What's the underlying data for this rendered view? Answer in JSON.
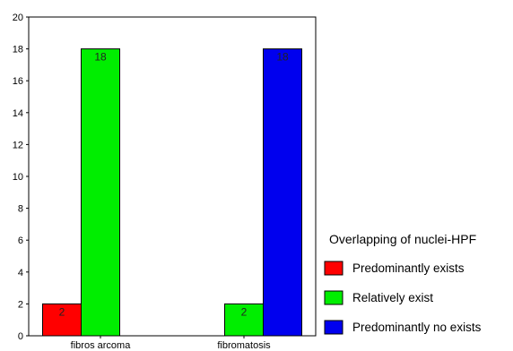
{
  "chart_data": {
    "type": "bar",
    "categories": [
      "fibrosarcoma",
      "fibromatosis"
    ],
    "category_labels": [
      "fibros arcoma",
      "fibromatosis"
    ],
    "series": [
      {
        "name": "Predominantly exists",
        "values": [
          2,
          0
        ],
        "color": "#ff0000"
      },
      {
        "name": "Relatively exist",
        "values": [
          18,
          2
        ],
        "color": "#00ee00"
      },
      {
        "name": "Predominantly no exists",
        "values": [
          0,
          18
        ],
        "color": "#0000ee"
      }
    ],
    "data_labels": [
      {
        "category": 0,
        "series": 0,
        "text": "2"
      },
      {
        "category": 0,
        "series": 1,
        "text": "18"
      },
      {
        "category": 1,
        "series": 1,
        "text": "2"
      },
      {
        "category": 1,
        "series": 2,
        "text": "18"
      }
    ],
    "y_ticks": [
      "0",
      "2",
      "4",
      "6",
      "8",
      "10",
      "12",
      "14",
      "16",
      "18",
      "20"
    ],
    "ylim": [
      0,
      20
    ],
    "title": "",
    "xlabel": "",
    "ylabel": "",
    "grid": false,
    "legend": {
      "title": "Overlapping of nuclei-HPF",
      "placement": "right"
    }
  }
}
